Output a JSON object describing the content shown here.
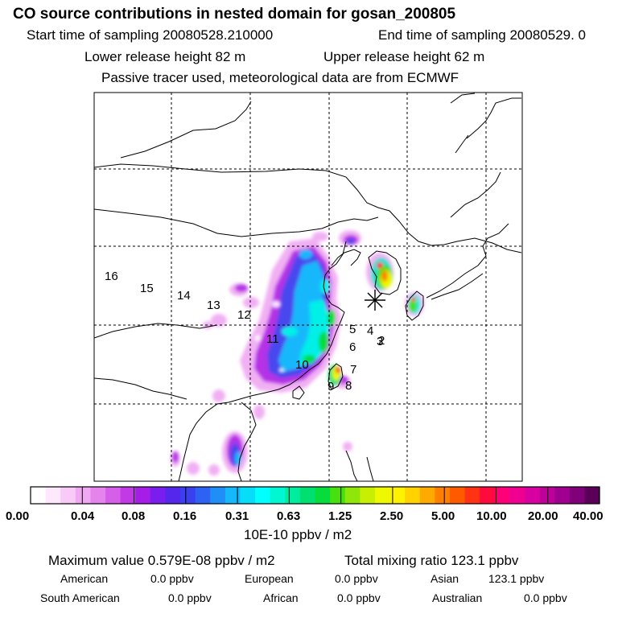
{
  "header": {
    "title": "CO  source contributions in nested domain for gosan_200805",
    "start_label": "Start time of sampling 20080528.210000",
    "end_label": "End time of sampling 20080529.     0",
    "lower_height": "Lower release height   82 m",
    "upper_height": "Upper release height   62 m",
    "tracer_note": "Passive tracer used, meteorological data are from ECMWF"
  },
  "map": {
    "region_labels": [
      "16",
      "15",
      "14",
      "13",
      "12",
      "11",
      "10",
      "9",
      "8",
      "7",
      "6",
      "5",
      "4",
      "3",
      "2"
    ],
    "receptor_marker": "asterisk-receptor"
  },
  "colorbar": {
    "colors": [
      "#ffffff",
      "#fde8fd",
      "#f8caf8",
      "#f0a8f2",
      "#e684ee",
      "#d55fe8",
      "#c23ae4",
      "#a61de8",
      "#7a1ef0",
      "#5526ec",
      "#3a3ff0",
      "#2e62f2",
      "#1f8ef7",
      "#14b8fb",
      "#06def9",
      "#00ffff",
      "#00f7d2",
      "#00eda0",
      "#00e070",
      "#06dd3c",
      "#46e010",
      "#8ee60a",
      "#c8ee04",
      "#eef800",
      "#fff200",
      "#ffd200",
      "#ffaa00",
      "#ff8000",
      "#ff5a00",
      "#ff3214",
      "#ff0a3c",
      "#ff0078",
      "#f00090",
      "#d800a0",
      "#bf0099",
      "#a00090",
      "#80007a",
      "#5a0058"
    ],
    "tick_labels": [
      "0.00",
      "0.04",
      "0.08",
      "0.16",
      "0.31",
      "0.63",
      "1.25",
      "2.50",
      "5.00",
      "10.00",
      "20.00",
      "40.00"
    ],
    "unit": "10E-10 ppbv / m2"
  },
  "stats": {
    "maximum": "Maximum value  0.579E-08 ppbv / m2",
    "total": "Total mixing ratio      123.1 ppbv"
  },
  "contributions": [
    {
      "name": "American",
      "value": "0.0 ppbv"
    },
    {
      "name": "European",
      "value": "0.0 ppbv"
    },
    {
      "name": "Asian",
      "value": "123.1 ppbv"
    },
    {
      "name": "South American",
      "value": "0.0 ppbv"
    },
    {
      "name": "African",
      "value": "0.0 ppbv"
    },
    {
      "name": "Australian",
      "value": "0.0 ppbv"
    }
  ]
}
